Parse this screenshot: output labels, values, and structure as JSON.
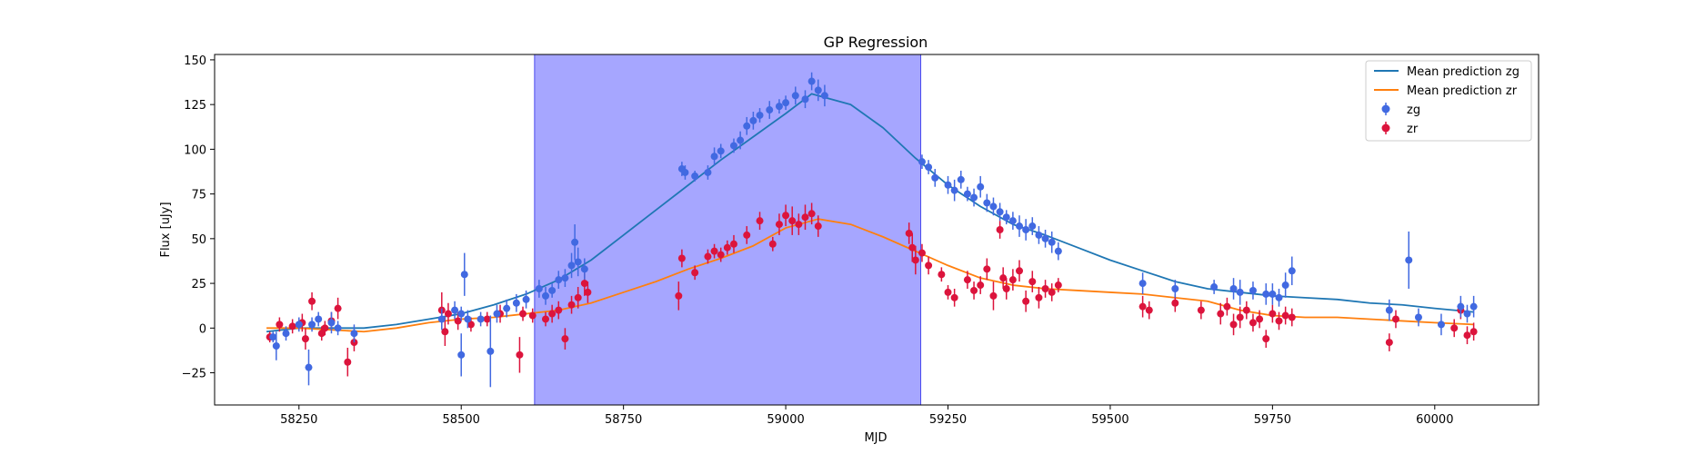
{
  "chart_data": {
    "type": "scatter",
    "title": "GP Regression",
    "xlabel": "MJD",
    "ylabel": "Flux [uJy]",
    "xlim": [
      58120,
      60160
    ],
    "ylim": [
      -43,
      153
    ],
    "xticks": [
      58250,
      58500,
      58750,
      59000,
      59250,
      59500,
      59750,
      60000
    ],
    "yticks": [
      -25,
      0,
      25,
      50,
      75,
      100,
      125,
      150
    ],
    "grid": false,
    "legend_position": "top-right",
    "highlight_span": {
      "x0": 58613,
      "x1": 59208,
      "color": "#a6a6ff"
    },
    "series": [
      {
        "name": "Mean prediction zg",
        "kind": "line",
        "color": "#1f77b4",
        "x": [
          58200,
          58250,
          58300,
          58350,
          58400,
          58450,
          58500,
          58550,
          58600,
          58650,
          58700,
          58750,
          58800,
          58850,
          58900,
          58950,
          59000,
          59040,
          59100,
          59150,
          59200,
          59250,
          59300,
          59350,
          59400,
          59450,
          59500,
          59550,
          59600,
          59650,
          59700,
          59750,
          59800,
          59850,
          59900,
          59950,
          60000,
          60060
        ],
        "y": [
          -2,
          0,
          0,
          0,
          2,
          5,
          8,
          13,
          19,
          27,
          38,
          52,
          66,
          80,
          94,
          107,
          120,
          131,
          125,
          112,
          95,
          80,
          68,
          58,
          52,
          45,
          38,
          32,
          26,
          22,
          20,
          18,
          17,
          16,
          14,
          13,
          11,
          9
        ]
      },
      {
        "name": "Mean prediction zr",
        "kind": "line",
        "color": "#ff7f0e",
        "x": [
          58200,
          58250,
          58300,
          58350,
          58400,
          58450,
          58500,
          58550,
          58600,
          58650,
          58700,
          58750,
          58800,
          58850,
          58900,
          58950,
          59000,
          59050,
          59100,
          59150,
          59200,
          59250,
          59300,
          59350,
          59400,
          59450,
          59500,
          59550,
          59600,
          59650,
          59700,
          59750,
          59800,
          59850,
          59900,
          59950,
          60000,
          60060
        ],
        "y": [
          0,
          0,
          -1,
          -2,
          0,
          3,
          5,
          6,
          8,
          10,
          14,
          20,
          26,
          33,
          39,
          46,
          56,
          61,
          58,
          51,
          43,
          35,
          28,
          24,
          22,
          21,
          20,
          19,
          17,
          15,
          10,
          7,
          6,
          6,
          5,
          4,
          3,
          2
        ]
      },
      {
        "name": "zg",
        "kind": "errorbar",
        "color": "#4169e1",
        "points": [
          [
            58210,
            -5,
            3
          ],
          [
            58215,
            -10,
            8
          ],
          [
            58230,
            -3,
            4
          ],
          [
            58250,
            2,
            4
          ],
          [
            58265,
            -22,
            10
          ],
          [
            58270,
            2,
            4
          ],
          [
            58280,
            5,
            4
          ],
          [
            58300,
            3,
            6
          ],
          [
            58310,
            0,
            4
          ],
          [
            58335,
            -3,
            5
          ],
          [
            58470,
            5,
            6
          ],
          [
            58490,
            10,
            5
          ],
          [
            58500,
            8,
            4
          ],
          [
            58500,
            -15,
            12
          ],
          [
            58505,
            30,
            12
          ],
          [
            58510,
            5,
            5
          ],
          [
            58530,
            5,
            4
          ],
          [
            58545,
            -13,
            20
          ],
          [
            58555,
            8,
            5
          ],
          [
            58570,
            11,
            5
          ],
          [
            58585,
            14,
            5
          ],
          [
            58600,
            16,
            5
          ],
          [
            58620,
            22,
            5
          ],
          [
            58630,
            18,
            5
          ],
          [
            58640,
            21,
            4
          ],
          [
            58650,
            27,
            5
          ],
          [
            58660,
            28,
            5
          ],
          [
            58670,
            35,
            7
          ],
          [
            58675,
            48,
            10
          ],
          [
            58680,
            37,
            8
          ],
          [
            58690,
            33,
            6
          ],
          [
            58840,
            89,
            4
          ],
          [
            58845,
            87,
            4
          ],
          [
            58860,
            85,
            3
          ],
          [
            58880,
            87,
            4
          ],
          [
            58890,
            96,
            5
          ],
          [
            58900,
            99,
            4
          ],
          [
            58920,
            102,
            4
          ],
          [
            58930,
            105,
            5
          ],
          [
            58940,
            113,
            5
          ],
          [
            58950,
            116,
            5
          ],
          [
            58960,
            119,
            4
          ],
          [
            58975,
            122,
            5
          ],
          [
            58990,
            124,
            4
          ],
          [
            59000,
            126,
            4
          ],
          [
            59015,
            130,
            5
          ],
          [
            59030,
            128,
            5
          ],
          [
            59040,
            138,
            5
          ],
          [
            59050,
            133,
            6
          ],
          [
            59060,
            130,
            6
          ],
          [
            59210,
            93,
            4
          ],
          [
            59220,
            90,
            4
          ],
          [
            59230,
            84,
            5
          ],
          [
            59250,
            80,
            5
          ],
          [
            59260,
            77,
            6
          ],
          [
            59270,
            83,
            5
          ],
          [
            59280,
            75,
            4
          ],
          [
            59290,
            73,
            5
          ],
          [
            59300,
            79,
            6
          ],
          [
            59310,
            70,
            5
          ],
          [
            59320,
            68,
            5
          ],
          [
            59330,
            65,
            5
          ],
          [
            59340,
            62,
            4
          ],
          [
            59350,
            60,
            5
          ],
          [
            59360,
            57,
            6
          ],
          [
            59370,
            55,
            6
          ],
          [
            59380,
            57,
            5
          ],
          [
            59390,
            52,
            5
          ],
          [
            59400,
            50,
            5
          ],
          [
            59410,
            48,
            6
          ],
          [
            59420,
            43,
            5
          ],
          [
            59550,
            25,
            6
          ],
          [
            59600,
            22,
            5
          ],
          [
            59660,
            23,
            4
          ],
          [
            59690,
            22,
            6
          ],
          [
            59700,
            20,
            7
          ],
          [
            59720,
            21,
            5
          ],
          [
            59740,
            19,
            6
          ],
          [
            59750,
            19,
            6
          ],
          [
            59760,
            17,
            5
          ],
          [
            59770,
            24,
            7
          ],
          [
            59780,
            32,
            8
          ],
          [
            59930,
            10,
            6
          ],
          [
            59960,
            38,
            16
          ],
          [
            59975,
            6,
            5
          ],
          [
            60010,
            2,
            6
          ],
          [
            60040,
            12,
            6
          ],
          [
            60050,
            8,
            5
          ],
          [
            60060,
            12,
            6
          ]
        ]
      },
      {
        "name": "zr",
        "kind": "errorbar",
        "color": "#dc143c",
        "points": [
          [
            58205,
            -5,
            3
          ],
          [
            58220,
            2,
            4
          ],
          [
            58240,
            1,
            4
          ],
          [
            58255,
            3,
            5
          ],
          [
            58260,
            -6,
            6
          ],
          [
            58270,
            15,
            5
          ],
          [
            58285,
            -3,
            4
          ],
          [
            58290,
            0,
            4
          ],
          [
            58300,
            4,
            5
          ],
          [
            58310,
            11,
            6
          ],
          [
            58325,
            -19,
            8
          ],
          [
            58335,
            -8,
            5
          ],
          [
            58470,
            10,
            10
          ],
          [
            58475,
            -2,
            8
          ],
          [
            58480,
            8,
            6
          ],
          [
            58495,
            4,
            5
          ],
          [
            58515,
            2,
            4
          ],
          [
            58540,
            5,
            4
          ],
          [
            58560,
            8,
            5
          ],
          [
            58590,
            -15,
            10
          ],
          [
            58595,
            8,
            4
          ],
          [
            58610,
            7,
            4
          ],
          [
            58630,
            5,
            4
          ],
          [
            58640,
            8,
            5
          ],
          [
            58650,
            10,
            5
          ],
          [
            58660,
            -6,
            6
          ],
          [
            58670,
            13,
            5
          ],
          [
            58680,
            17,
            6
          ],
          [
            58690,
            25,
            7
          ],
          [
            58695,
            20,
            6
          ],
          [
            58835,
            18,
            8
          ],
          [
            58840,
            39,
            5
          ],
          [
            58860,
            31,
            4
          ],
          [
            58880,
            40,
            4
          ],
          [
            58890,
            43,
            4
          ],
          [
            58900,
            41,
            4
          ],
          [
            58910,
            45,
            4
          ],
          [
            58920,
            47,
            5
          ],
          [
            58940,
            52,
            5
          ],
          [
            58960,
            60,
            5
          ],
          [
            58980,
            47,
            4
          ],
          [
            58990,
            58,
            6
          ],
          [
            59000,
            63,
            6
          ],
          [
            59010,
            60,
            8
          ],
          [
            59020,
            58,
            6
          ],
          [
            59030,
            62,
            7
          ],
          [
            59040,
            64,
            6
          ],
          [
            59050,
            57,
            6
          ],
          [
            59190,
            53,
            6
          ],
          [
            59195,
            45,
            8
          ],
          [
            59200,
            38,
            8
          ],
          [
            59210,
            42,
            5
          ],
          [
            59220,
            35,
            5
          ],
          [
            59240,
            30,
            4
          ],
          [
            59250,
            20,
            4
          ],
          [
            59260,
            17,
            5
          ],
          [
            59280,
            27,
            5
          ],
          [
            59290,
            21,
            5
          ],
          [
            59300,
            24,
            5
          ],
          [
            59310,
            33,
            6
          ],
          [
            59320,
            18,
            8
          ],
          [
            59330,
            55,
            5
          ],
          [
            59335,
            28,
            6
          ],
          [
            59340,
            22,
            6
          ],
          [
            59350,
            27,
            6
          ],
          [
            59360,
            32,
            6
          ],
          [
            59370,
            15,
            6
          ],
          [
            59380,
            26,
            6
          ],
          [
            59390,
            17,
            6
          ],
          [
            59400,
            22,
            5
          ],
          [
            59410,
            20,
            5
          ],
          [
            59420,
            24,
            4
          ],
          [
            59550,
            12,
            6
          ],
          [
            59560,
            10,
            5
          ],
          [
            59600,
            14,
            5
          ],
          [
            59640,
            10,
            5
          ],
          [
            59670,
            8,
            6
          ],
          [
            59680,
            12,
            5
          ],
          [
            59690,
            2,
            6
          ],
          [
            59700,
            6,
            6
          ],
          [
            59710,
            10,
            5
          ],
          [
            59720,
            3,
            5
          ],
          [
            59730,
            5,
            5
          ],
          [
            59740,
            -6,
            5
          ],
          [
            59750,
            8,
            5
          ],
          [
            59760,
            4,
            5
          ],
          [
            59770,
            7,
            5
          ],
          [
            59780,
            6,
            5
          ],
          [
            59930,
            -8,
            5
          ],
          [
            59940,
            5,
            5
          ],
          [
            60030,
            0,
            5
          ],
          [
            60040,
            10,
            5
          ],
          [
            60050,
            -4,
            5
          ],
          [
            60060,
            -2,
            5
          ]
        ]
      }
    ]
  }
}
